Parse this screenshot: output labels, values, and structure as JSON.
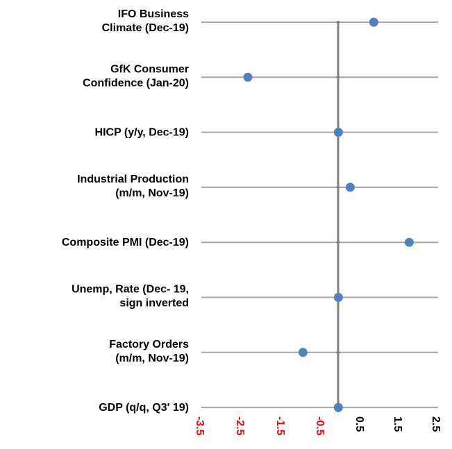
{
  "chart_data": {
    "type": "scatter",
    "orientation": "horizontal",
    "categories": [
      [
        "IFO Business",
        "Climate (Dec-19)"
      ],
      [
        "GfK Consumer",
        "Confidence (Jan-20)"
      ],
      [
        "HICP (y/y, Dec-19)"
      ],
      [
        "Industrial Production",
        "(m/m, Nov-19)"
      ],
      [
        "Composite PMI (Dec-19)"
      ],
      [
        "Unemp, Rate (Dec- 19,",
        "sign inverted"
      ],
      [
        "Factory Orders",
        "(m/m, Nov-19)"
      ],
      [
        "GDP (q/q, Q3' 19)"
      ]
    ],
    "values": [
      0.9,
      -2.3,
      0.0,
      0.3,
      1.8,
      0.0,
      -0.9,
      0.0
    ],
    "xlim": [
      -3.5,
      2.5
    ],
    "xticks": [
      "-3.5",
      "-2.5",
      "-1.5",
      "-0.5",
      "0.5",
      "1.5",
      "2.5"
    ],
    "tick_values": [
      -3.5,
      -2.5,
      -1.5,
      -0.5,
      0.5,
      1.5,
      2.5
    ],
    "negative_tick_color": "#ff0000",
    "positive_tick_color": "#000000",
    "marker_color": "#4f81bd",
    "gridline_color": "#a6a6a6",
    "zero_line_color": "#808080",
    "grid": true
  }
}
